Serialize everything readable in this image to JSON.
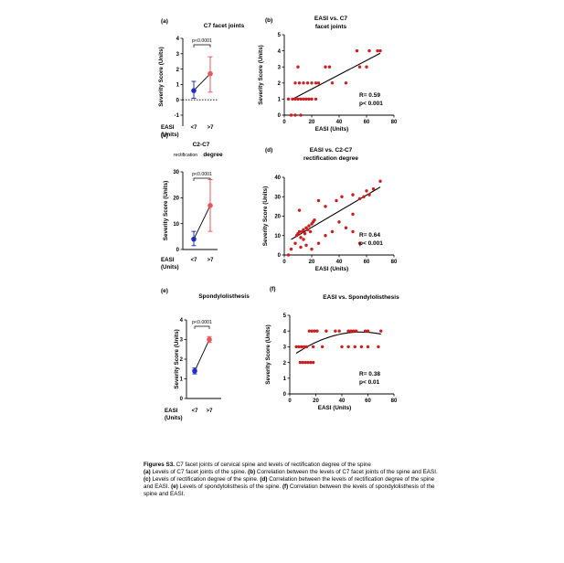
{
  "chart_data": [
    {
      "panel_label": "(a)",
      "type": "scatter",
      "title": "C7 facet joints",
      "ylabel": "Severity Score (Units)",
      "xlabel": "EASI\n(Units)",
      "categories": [
        "<7",
        ">7"
      ],
      "means": [
        0.6,
        1.7
      ],
      "error_low": [
        0.1,
        0.5
      ],
      "error_high": [
        1.2,
        2.8
      ],
      "colors": [
        "#1f2fbf",
        "#e8565b"
      ],
      "ylim": [
        -1,
        4
      ],
      "yticks": [
        -1,
        0,
        1,
        2,
        3,
        4
      ],
      "significance": "p<0.0001",
      "baseline_dotted": 0
    },
    {
      "panel_label": "(b)",
      "type": "scatter",
      "title": "EASI vs. C7\nfacet joints",
      "ylabel": "Severity Score (Units)",
      "xlabel": "EASI (Units)",
      "xlim": [
        0,
        80
      ],
      "ylim": [
        0,
        5
      ],
      "xticks": [
        0,
        20,
        40,
        60,
        80
      ],
      "yticks": [
        0,
        1,
        2,
        3,
        4,
        5
      ],
      "points": [
        [
          5,
          0
        ],
        [
          8,
          0
        ],
        [
          12,
          0
        ],
        [
          3,
          1
        ],
        [
          6,
          1
        ],
        [
          8,
          1
        ],
        [
          10,
          1
        ],
        [
          12,
          1
        ],
        [
          14,
          1
        ],
        [
          16,
          1
        ],
        [
          18,
          1
        ],
        [
          20,
          1
        ],
        [
          23,
          1
        ],
        [
          8,
          2
        ],
        [
          11,
          2
        ],
        [
          14,
          2
        ],
        [
          17,
          2
        ],
        [
          20,
          2
        ],
        [
          23,
          2
        ],
        [
          25,
          2
        ],
        [
          35,
          2
        ],
        [
          45,
          2
        ],
        [
          10,
          3
        ],
        [
          30,
          3
        ],
        [
          33,
          3
        ],
        [
          55,
          3
        ],
        [
          60,
          3
        ],
        [
          53,
          4
        ],
        [
          62,
          4
        ],
        [
          68,
          4
        ],
        [
          70,
          4
        ]
      ],
      "fit": {
        "type": "linear",
        "x": [
          5,
          70
        ],
        "y": [
          0.95,
          3.85
        ]
      },
      "stats": [
        "R= 0.59",
        "p< 0.001"
      ],
      "color": "#cc1f1f"
    },
    {
      "panel_label": "(c)",
      "type": "scatter",
      "title": "C2-C7",
      "subtitle_small": "rectification",
      "subtitle_big": "degree",
      "ylabel": "Severity Score (Units)",
      "xlabel": "EASI\n(Units)",
      "categories": [
        "<7",
        ">7"
      ],
      "means": [
        4,
        17
      ],
      "error_low": [
        1.5,
        7
      ],
      "error_high": [
        7,
        27
      ],
      "colors": [
        "#1f2fbf",
        "#e8565b"
      ],
      "ylim": [
        0,
        30
      ],
      "yticks": [
        0,
        10,
        20,
        30
      ],
      "significance": "p<0.0001"
    },
    {
      "panel_label": "(d)",
      "type": "scatter",
      "title": "EASI vs. C2-C7\nrectification degree",
      "ylabel": "Severity Score (Units)",
      "xlabel": "EASI (Units)",
      "xlim": [
        0,
        80
      ],
      "ylim": [
        0,
        40
      ],
      "xticks": [
        0,
        20,
        40,
        60,
        80
      ],
      "yticks": [
        0,
        10,
        20,
        30,
        40
      ],
      "points": [
        [
          3,
          0
        ],
        [
          5,
          3
        ],
        [
          8,
          6
        ],
        [
          9,
          10
        ],
        [
          10,
          11
        ],
        [
          11,
          12
        ],
        [
          12,
          9
        ],
        [
          13,
          12
        ],
        [
          14,
          13
        ],
        [
          15,
          11
        ],
        [
          16,
          14
        ],
        [
          17,
          13
        ],
        [
          18,
          15
        ],
        [
          19,
          12
        ],
        [
          20,
          16
        ],
        [
          21,
          17
        ],
        [
          22,
          18
        ],
        [
          12,
          4
        ],
        [
          16,
          5
        ],
        [
          20,
          3
        ],
        [
          25,
          6
        ],
        [
          14,
          8
        ],
        [
          30,
          10
        ],
        [
          35,
          12
        ],
        [
          40,
          17
        ],
        [
          45,
          14
        ],
        [
          50,
          21
        ],
        [
          50,
          12
        ],
        [
          55,
          6
        ],
        [
          38,
          28
        ],
        [
          42,
          30
        ],
        [
          50,
          31
        ],
        [
          55,
          29
        ],
        [
          58,
          30
        ],
        [
          60,
          33
        ],
        [
          62,
          31
        ],
        [
          65,
          34
        ],
        [
          70,
          38
        ],
        [
          11,
          23
        ],
        [
          25,
          28
        ],
        [
          30,
          25
        ]
      ],
      "fit": {
        "type": "linear",
        "x": [
          5,
          70
        ],
        "y": [
          8,
          35
        ]
      },
      "stats": [
        "R= 0.64",
        "p< 0.001"
      ],
      "color": "#cc1f1f"
    },
    {
      "panel_label": "(e)",
      "type": "scatter",
      "title": "Spondylolisthesis",
      "ylabel": "Severity Score (Units)",
      "xlabel": "EASI\n(Units)",
      "categories": [
        "<7",
        ">7"
      ],
      "means": [
        1.4,
        3.0
      ],
      "error_low": [
        1.25,
        2.85
      ],
      "error_high": [
        1.55,
        3.15
      ],
      "colors": [
        "#1f2fbf",
        "#e8565b"
      ],
      "ylim": [
        0,
        4
      ],
      "yticks": [
        0,
        1,
        2,
        3,
        4
      ],
      "significance": "p<0.0001"
    },
    {
      "panel_label": "(f)",
      "type": "scatter",
      "title": "EASI vs. Spondylolisthesis",
      "ylabel": "Severity Score (Units)",
      "xlabel": "EASI (Units)",
      "xlim": [
        0,
        80
      ],
      "ylim": [
        0,
        5
      ],
      "xticks": [
        0,
        20,
        40,
        60,
        80
      ],
      "yticks": [
        0,
        1,
        2,
        3,
        4,
        5
      ],
      "points": [
        [
          8,
          2
        ],
        [
          10,
          2
        ],
        [
          12,
          2
        ],
        [
          14,
          2
        ],
        [
          16,
          2
        ],
        [
          18,
          2
        ],
        [
          5,
          3
        ],
        [
          7,
          3
        ],
        [
          9,
          3
        ],
        [
          11,
          3
        ],
        [
          13,
          3
        ],
        [
          18,
          3
        ],
        [
          25,
          3
        ],
        [
          40,
          3
        ],
        [
          45,
          3
        ],
        [
          50,
          3
        ],
        [
          55,
          3
        ],
        [
          60,
          3
        ],
        [
          68,
          3
        ],
        [
          15,
          4
        ],
        [
          17,
          4
        ],
        [
          19,
          4
        ],
        [
          21,
          4
        ],
        [
          28,
          4
        ],
        [
          35,
          4
        ],
        [
          38,
          4
        ],
        [
          45,
          4
        ],
        [
          47,
          4
        ],
        [
          49,
          4
        ],
        [
          51,
          4
        ],
        [
          58,
          4
        ],
        [
          60,
          4
        ],
        [
          70,
          4
        ]
      ],
      "fit": {
        "type": "quadratic",
        "x": [
          5,
          70
        ],
        "coef": [
          2.3,
          0.06,
          -0.00055
        ]
      },
      "stats": [
        "R= 0.38",
        "p< 0.01"
      ],
      "color": "#cc1f1f"
    }
  ],
  "caption": {
    "lead": "Figures S3.",
    "lead_rest": " C7 facet joints of cervical spine and levels of rectification degree of the spine",
    "parts": [
      {
        "label": "(a)",
        "text": " Levels of C7 facet joints of the spine. "
      },
      {
        "label": "(b)",
        "text": " Correlation between the levels of C7 facet joints of the spine and EASI. "
      },
      {
        "label": "(c)",
        "text": " Levels of rectification degree of the spine. "
      },
      {
        "label": "(d)",
        "text": " Correlation between the levels of rectification degree of the spine and EASI. "
      },
      {
        "label": "(e)",
        "text": " Levels of spondylolisthesis of the spine. "
      },
      {
        "label": "(f)",
        "text": " Correlation between the levels of spondylolisthesis of the spine and EASI."
      }
    ]
  }
}
